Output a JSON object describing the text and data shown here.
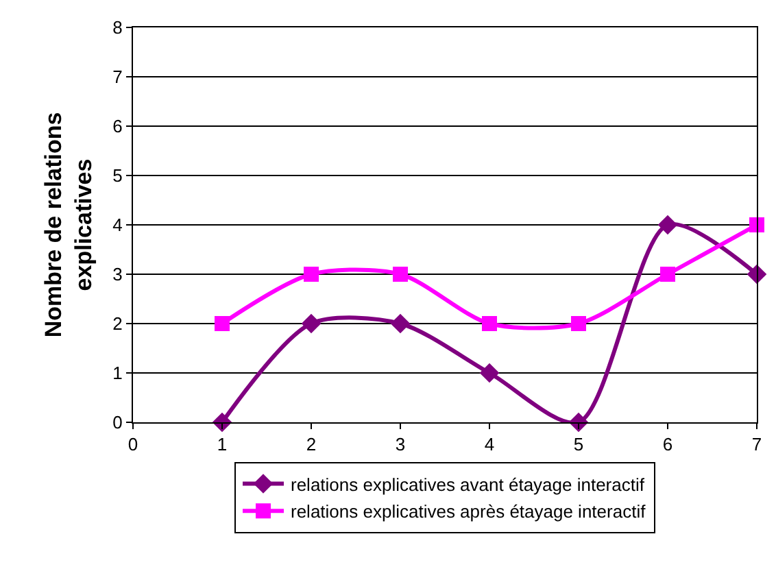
{
  "chart_data": {
    "type": "line",
    "ylabel": "Nombre de relations explicatives",
    "x": [
      1,
      2,
      3,
      4,
      5,
      6,
      7
    ],
    "xlim": [
      0,
      7
    ],
    "xticks": [
      0,
      1,
      2,
      3,
      4,
      5,
      6,
      7
    ],
    "ylim": [
      0,
      8
    ],
    "yticks": [
      0,
      1,
      2,
      3,
      4,
      5,
      6,
      7,
      8
    ],
    "grid": "y",
    "legend": "bottom",
    "series": [
      {
        "name": "relations explicatives avant étayage interactif",
        "color": "#800080",
        "marker": "diamond",
        "values": [
          0,
          2,
          2,
          1,
          0,
          4,
          3
        ]
      },
      {
        "name": "relations explicatives après étayage interactif",
        "color": "#ff00ff",
        "marker": "square",
        "values": [
          2,
          3,
          3,
          2,
          2,
          3,
          4
        ]
      }
    ]
  }
}
